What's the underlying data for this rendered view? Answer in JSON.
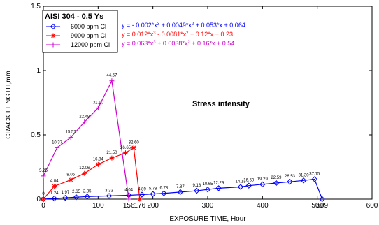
{
  "chart_data": {
    "type": "line",
    "title": "AISI 304 - 0,5 Ys",
    "xlabel": "EXPOSURE TIME, Hour",
    "ylabel": "CRACK LENGTH,mm",
    "xlim": [
      0,
      600
    ],
    "ylim": [
      0,
      1.5
    ],
    "xticks": [
      "0",
      "100",
      "200",
      "300",
      "400",
      "500",
      "600"
    ],
    "yticks": [
      "0",
      "0.5",
      "1",
      "1.5"
    ],
    "grid": false,
    "legend_position": "top-left",
    "annotation": "Stress intensity",
    "series": [
      {
        "name": "6000 ppm Cl",
        "color": "#0000ff",
        "marker": "diamond",
        "equation": "y = - 0.002*x^3 + 0.0049*x^2 + 0.053*x + 0.064",
        "points": [
          {
            "x": 0,
            "y": 0.0,
            "label": "0"
          },
          {
            "x": 20,
            "y": 0.005,
            "label": "1.24"
          },
          {
            "x": 40,
            "y": 0.01,
            "label": "1.97"
          },
          {
            "x": 60,
            "y": 0.015,
            "label": "2.65"
          },
          {
            "x": 80,
            "y": 0.02,
            "label": "2.85"
          },
          {
            "x": 120,
            "y": 0.025,
            "label": "3.33"
          },
          {
            "x": 156,
            "y": 0.03,
            "label": "4.04"
          },
          {
            "x": 180,
            "y": 0.035,
            "label": "4.89"
          },
          {
            "x": 200,
            "y": 0.04,
            "label": "5.78"
          },
          {
            "x": 220,
            "y": 0.045,
            "label": "6.78"
          },
          {
            "x": 250,
            "y": 0.055,
            "label": "7.87"
          },
          {
            "x": 280,
            "y": 0.065,
            "label": "9.18"
          },
          {
            "x": 300,
            "y": 0.075,
            "label": "10.65"
          },
          {
            "x": 320,
            "y": 0.085,
            "label": "12.29"
          },
          {
            "x": 360,
            "y": 0.095,
            "label": "14.13"
          },
          {
            "x": 375,
            "y": 0.105,
            "label": "16.50"
          },
          {
            "x": 400,
            "y": 0.115,
            "label": "19.29"
          },
          {
            "x": 425,
            "y": 0.125,
            "label": "22.59"
          },
          {
            "x": 450,
            "y": 0.135,
            "label": "26.53"
          },
          {
            "x": 475,
            "y": 0.145,
            "label": "31.30"
          },
          {
            "x": 495,
            "y": 0.155,
            "label": "37.15"
          },
          {
            "x": 509,
            "y": 0.0,
            "label": ""
          }
        ]
      },
      {
        "name": "9000 ppm Cl",
        "color": "#ff0000",
        "marker": "asterisk",
        "equation": "y = 0.012*x^3 - 0.0081*x^2 + 0.12*x + 0.23",
        "points": [
          {
            "x": 0,
            "y": 0.0,
            "label": ""
          },
          {
            "x": 20,
            "y": 0.1,
            "label": "4.04"
          },
          {
            "x": 50,
            "y": 0.15,
            "label": "8.06"
          },
          {
            "x": 75,
            "y": 0.2,
            "label": "12.06"
          },
          {
            "x": 100,
            "y": 0.27,
            "label": "16.84"
          },
          {
            "x": 125,
            "y": 0.32,
            "label": "21.50"
          },
          {
            "x": 150,
            "y": 0.36,
            "label": "26.65"
          },
          {
            "x": 165,
            "y": 0.4,
            "label": "32.60"
          },
          {
            "x": 176,
            "y": 0.0,
            "label": ""
          }
        ]
      },
      {
        "name": "12000 ppm Cl",
        "color": "#cc00cc",
        "marker": "plus",
        "equation": "y = 0.063*x^3 + 0.0038*x^2 + 0.16*x + 0.54",
        "points": [
          {
            "x": 0,
            "y": 0.18,
            "label": "5.25"
          },
          {
            "x": 25,
            "y": 0.4,
            "label": "10.37"
          },
          {
            "x": 50,
            "y": 0.48,
            "label": "15.57"
          },
          {
            "x": 75,
            "y": 0.6,
            "label": "22.49"
          },
          {
            "x": 100,
            "y": 0.71,
            "label": "31.10"
          },
          {
            "x": 125,
            "y": 0.92,
            "label": "44.57"
          },
          {
            "x": 156,
            "y": 0.0,
            "label": ""
          }
        ]
      }
    ],
    "extra_xtick_labels": [
      {
        "x": 156,
        "text": "156",
        "color": "#cc00cc"
      },
      {
        "x": 176,
        "text": "176",
        "color": "#ff0000"
      },
      {
        "x": 509,
        "text": "509",
        "color": "#0000ff"
      }
    ]
  }
}
